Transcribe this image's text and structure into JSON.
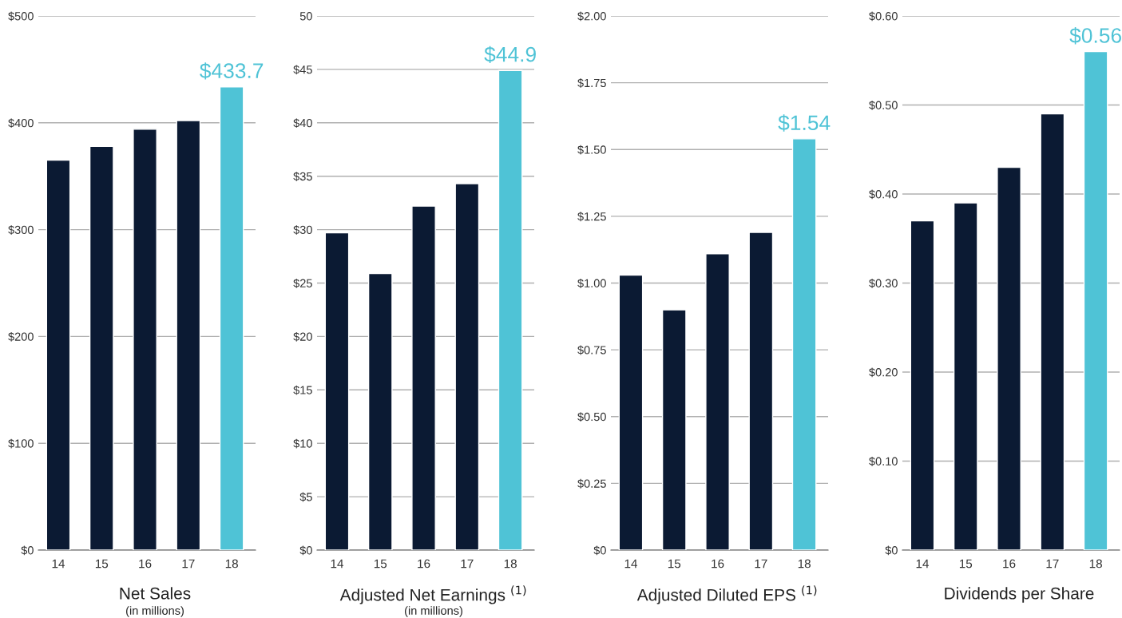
{
  "chart_data": [
    {
      "type": "bar",
      "title": "Net Sales",
      "subtitle": "(in millions)",
      "categories": [
        "14",
        "15",
        "16",
        "17",
        "18"
      ],
      "colors": [
        "#0b1a33",
        "#0b1a33",
        "#0b1a33",
        "#0b1a33",
        "#4fc3d6"
      ],
      "values": [
        365,
        378,
        394,
        402,
        433.7
      ],
      "value_labels": [
        null,
        null,
        null,
        null,
        "$433.7"
      ],
      "ylim": [
        0,
        500
      ],
      "yticks": [
        {
          "value": 0,
          "label": "$0"
        },
        {
          "value": 100,
          "label": "$100"
        },
        {
          "value": 200,
          "label": "$200"
        },
        {
          "value": 300,
          "label": "$300"
        },
        {
          "value": 400,
          "label": "$400"
        },
        {
          "value": 500,
          "label": "$500"
        }
      ],
      "grid": "y",
      "legend": false
    },
    {
      "type": "bar",
      "title": "Adjusted Net Earnings $^{(1)}$",
      "subtitle": "(in millions)",
      "categories": [
        "14",
        "15",
        "16",
        "17",
        "18"
      ],
      "colors": [
        "#0b1a33",
        "#0b1a33",
        "#0b1a33",
        "#0b1a33",
        "#4fc3d6"
      ],
      "values": [
        29.7,
        25.9,
        32.2,
        34.3,
        44.9
      ],
      "value_labels": [
        null,
        null,
        null,
        null,
        "$44.9"
      ],
      "ylim": [
        0,
        50
      ],
      "yticks": [
        {
          "value": 0,
          "label": "$0"
        },
        {
          "value": 5,
          "label": "$5"
        },
        {
          "value": 10,
          "label": "$10"
        },
        {
          "value": 15,
          "label": "$15"
        },
        {
          "value": 20,
          "label": "$20"
        },
        {
          "value": 25,
          "label": "$25"
        },
        {
          "value": 30,
          "label": "$30"
        },
        {
          "value": 35,
          "label": "$35"
        },
        {
          "value": 40,
          "label": "$40"
        },
        {
          "value": 45,
          "label": "$45"
        },
        50
      ],
      "grid": "y",
      "legend": false
    },
    {
      "type": "bar",
      "title": "Adjusted Diluted EPS $^{(1)}$",
      "categories": [
        "14",
        "15",
        "16",
        "17",
        "18"
      ],
      "colors": [
        "#0b1a33",
        "#0b1a33",
        "#0b1a33",
        "#0b1a33",
        "#4fc3d6"
      ],
      "values": [
        1.03,
        0.9,
        1.11,
        1.19,
        1.54
      ],
      "value_labels": [
        null,
        null,
        null,
        null,
        "$1.54"
      ],
      "ylim": [
        0,
        2
      ],
      "yticks": [
        {
          "value": 0,
          "label": "$0"
        },
        {
          "value": 0.25,
          "label": "$0.25"
        },
        {
          "value": 0.5,
          "label": "$0.50"
        },
        {
          "value": 0.75,
          "label": "$0.75"
        },
        {
          "value": 1,
          "label": "$1.00"
        },
        {
          "value": 1.25,
          "label": "$1.25"
        },
        {
          "value": 1.5,
          "label": "$1.50"
        },
        {
          "value": 1.75,
          "label": "$1.75"
        },
        {
          "value": 2,
          "label": "$2.00"
        }
      ],
      "grid": "y",
      "legend": false
    },
    {
      "type": "bar",
      "title": "Dividends per Share",
      "categories": [
        "14",
        "15",
        "16",
        "17",
        "18"
      ],
      "colors": [
        "#0b1a33",
        "#0b1a33",
        "#0b1a33",
        "#0b1a33",
        "#4fc3d6"
      ],
      "values": [
        0.37,
        0.39,
        0.43,
        0.49,
        0.56
      ],
      "value_labels": [
        null,
        null,
        null,
        null,
        "$0.56"
      ],
      "ylim": [
        0,
        0.6
      ],
      "yticks": [
        {
          "value": 0,
          "label": "$0"
        },
        {
          "value": 0.1,
          "label": "$0.10"
        },
        {
          "value": 0.2,
          "label": "$0.20"
        },
        {
          "value": 0.3,
          "label": "$0.30"
        },
        {
          "value": 0.4,
          "label": "$0.40"
        },
        {
          "value": 0.5,
          "label": "$0.50"
        },
        {
          "value": 0.6,
          "label": "$0.60"
        }
      ],
      "grid": "y",
      "legend": false
    }
  ]
}
